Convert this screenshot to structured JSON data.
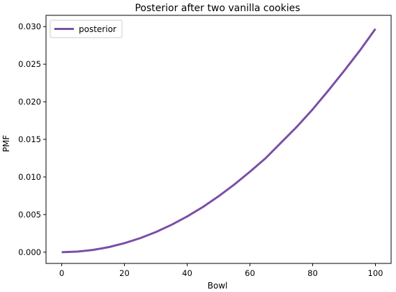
{
  "chart_data": {
    "type": "line",
    "title": "Posterior after two vanilla cookies",
    "xlabel": "Bowl",
    "ylabel": "PMF",
    "xlim": [
      -5,
      105
    ],
    "ylim": [
      -0.0015,
      0.0315
    ],
    "xticks": [
      0,
      20,
      40,
      60,
      80,
      100
    ],
    "yticks": [
      0.0,
      0.005,
      0.01,
      0.015,
      0.02,
      0.025,
      0.03
    ],
    "xtick_labels": [
      "0",
      "20",
      "40",
      "60",
      "80",
      "100"
    ],
    "ytick_labels": [
      "0.000",
      "0.005",
      "0.010",
      "0.015",
      "0.020",
      "0.025",
      "0.030"
    ],
    "grid": false,
    "legend_position": "upper-left",
    "series": [
      {
        "name": "posterior",
        "color": "#7b4ea6",
        "x": [
          0,
          5,
          10,
          15,
          20,
          25,
          30,
          35,
          40,
          45,
          50,
          55,
          60,
          65,
          70,
          75,
          80,
          85,
          90,
          95,
          100
        ],
        "y": [
          0.0,
          7.43e-05,
          0.000297,
          0.000668,
          0.00119,
          0.00186,
          0.00267,
          0.00364,
          0.00475,
          0.00601,
          0.00743,
          0.00899,
          0.0107,
          0.0125,
          0.0146,
          0.0167,
          0.019,
          0.0215,
          0.0241,
          0.0268,
          0.0297
        ]
      }
    ]
  }
}
